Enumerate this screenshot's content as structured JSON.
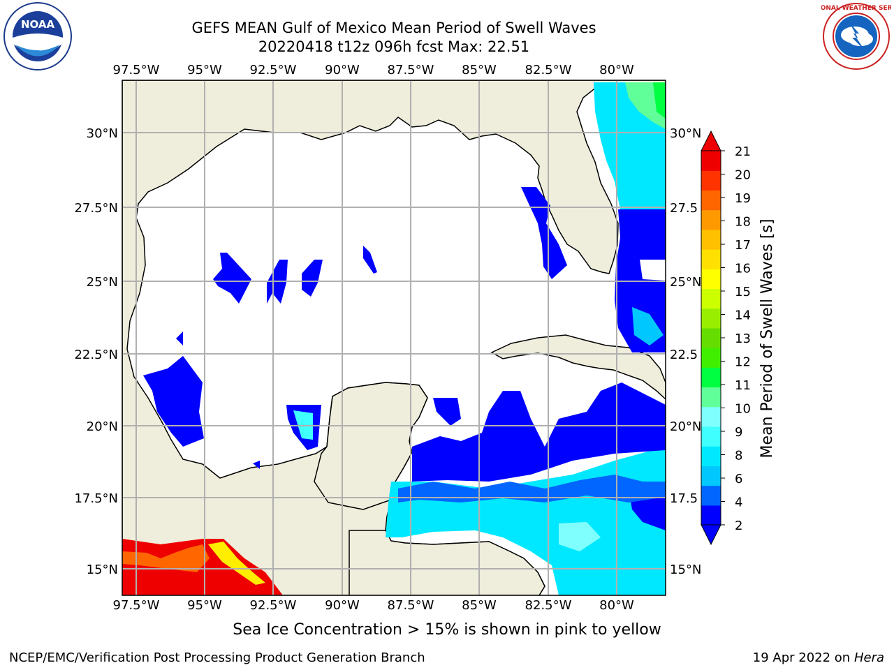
{
  "header": {
    "title_line1": "GEFS MEAN Gulf of Mexico Mean Period of Swell Waves",
    "title_line2": "20220418 t12z 096h fcst   Max: 22.51"
  },
  "logos": {
    "noaa": "NOAA",
    "noaa_ring": "NATIONAL OCEANIC AND ATMOSPHERIC ADMINISTRATION",
    "noaa_ring_bottom": "U.S. DEPARTMENT OF COMMERCE",
    "nws_ring": "NATIONAL WEATHER SERVICE"
  },
  "map": {
    "lon_labels": [
      "97.5°W",
      "95°W",
      "92.5°W",
      "90°W",
      "87.5°W",
      "85°W",
      "82.5°W",
      "80°W"
    ],
    "lat_labels_left": [
      "30°N",
      "27.5°N",
      "25°N",
      "22.5°N",
      "20°N",
      "17.5°N",
      "15°N"
    ],
    "lat_labels_right": [
      "30°N",
      "27.5",
      "25°N",
      "22.5",
      "20°N",
      "17.5",
      "15°N"
    ],
    "land_color": "#efeddb",
    "ocean_color": "#ffffff"
  },
  "colorbar": {
    "label": "Mean Period of Swell Waves [s]",
    "ticks": [
      "21",
      "20",
      "19",
      "18",
      "17",
      "16",
      "15",
      "14",
      "13",
      "12",
      "11",
      "10",
      "9",
      "8",
      "6",
      "4",
      "2"
    ],
    "colors": [
      "#0000ff",
      "#0066ff",
      "#00c8ff",
      "#00e8ff",
      "#40ffff",
      "#80ffff",
      "#60ff9a",
      "#00ff40",
      "#40ee00",
      "#66dd00",
      "#99ee00",
      "#ccff00",
      "#ffff00",
      "#ffe000",
      "#ffc000",
      "#ff9900",
      "#ff6600",
      "#ff3300",
      "#ee0000"
    ]
  },
  "footer": {
    "note": "Sea Ice Concentration > 15% is shown in pink to yellow",
    "left": "NCEP/EMC/Verification Post Processing Product Generation Branch",
    "right_date": "19 Apr 2022 on ",
    "right_host": "Hera"
  }
}
